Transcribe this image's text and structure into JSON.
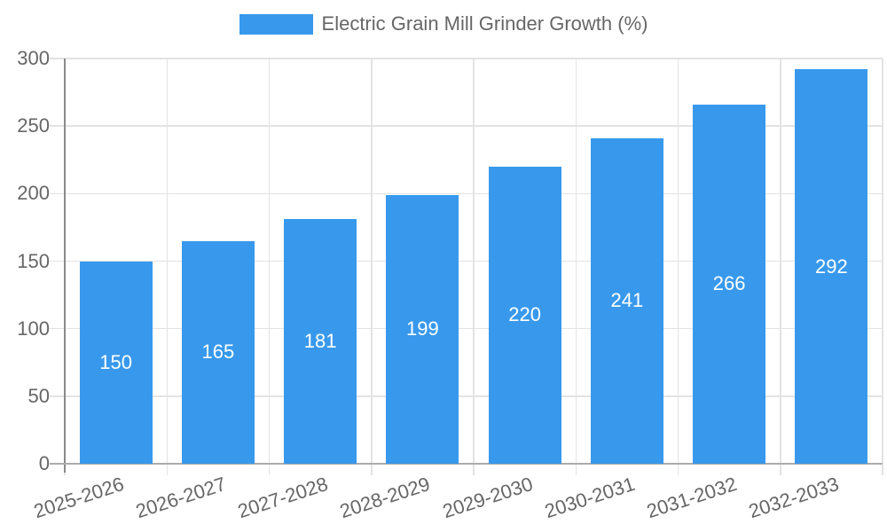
{
  "chart_data": {
    "type": "bar",
    "title": "Electric Grain Mill Grinder Growth (%)",
    "categories": [
      "2025-2026",
      "2026-2027",
      "2027-2028",
      "2028-2029",
      "2029-2030",
      "2030-2031",
      "2031-2032",
      "2032-2033"
    ],
    "values": [
      150,
      165,
      181,
      199,
      220,
      241,
      266,
      292
    ],
    "yticks": [
      0,
      50,
      100,
      150,
      200,
      250,
      300
    ],
    "ylim": [
      0,
      300
    ],
    "xlabel": "",
    "ylabel": "",
    "grid": true,
    "legend_position": "top-center",
    "value_labels": "inside-center",
    "x_label_rotation_deg": -18,
    "bar_color": "#3899ec",
    "value_label_color": "#ffffff",
    "axis_text_color": "#666666",
    "gridline_color": "#e3e3e3",
    "y_axis_line_color": "#8a8a8a",
    "x_axis_line_color": "#ababab"
  }
}
